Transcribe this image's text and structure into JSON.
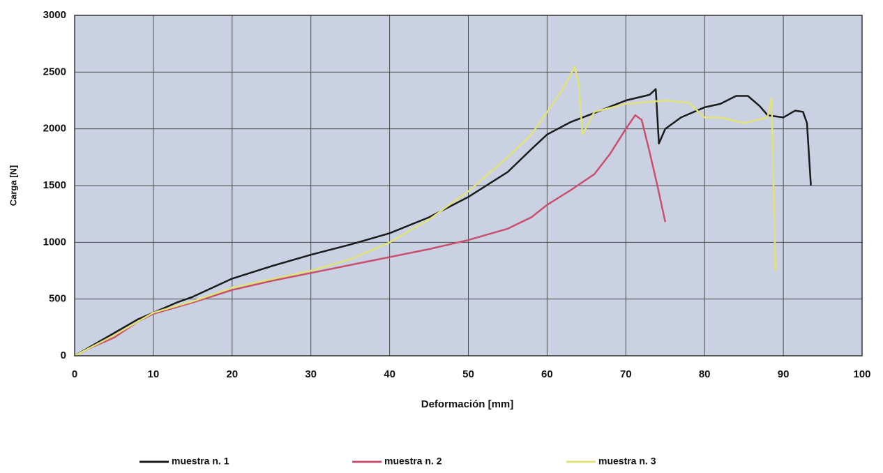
{
  "chart_data": {
    "type": "line",
    "xlabel": "Deformación [mm]",
    "ylabel": "Carga [N]",
    "xlim": [
      0,
      100
    ],
    "xticks": [
      0,
      10,
      20,
      30,
      40,
      50,
      60,
      70,
      80,
      90,
      100
    ],
    "ylim": [
      0,
      3000
    ],
    "yticks": [
      0,
      500,
      1000,
      1500,
      2000,
      2500,
      3000
    ],
    "grid": true,
    "legend": "bottom",
    "series": [
      {
        "name": "muestra n. 1",
        "color": "#1a1a1a",
        "x": [
          0,
          2,
          5,
          8,
          10,
          13,
          15,
          20,
          25,
          30,
          35,
          40,
          45,
          50,
          55,
          58,
          60,
          63,
          66,
          70,
          73,
          73.8,
          74.2,
          75,
          77,
          80,
          82,
          84,
          85.5,
          87,
          88,
          90,
          91.5,
          92.5,
          93,
          93.5
        ],
        "values": [
          0,
          80,
          200,
          320,
          380,
          470,
          520,
          680,
          790,
          890,
          980,
          1080,
          1220,
          1400,
          1620,
          1820,
          1950,
          2060,
          2140,
          2250,
          2300,
          2350,
          1870,
          2000,
          2100,
          2190,
          2220,
          2290,
          2290,
          2200,
          2120,
          2100,
          2160,
          2150,
          2050,
          1500
        ]
      },
      {
        "name": "muestra n. 2",
        "color": "#c8506c",
        "x": [
          0,
          2,
          5,
          8,
          10,
          15,
          20,
          25,
          30,
          35,
          40,
          45,
          50,
          55,
          58,
          60,
          63,
          66,
          68,
          70,
          71.2,
          72,
          73,
          74,
          75
        ],
        "values": [
          0,
          70,
          160,
          300,
          370,
          470,
          580,
          660,
          730,
          800,
          870,
          940,
          1020,
          1120,
          1220,
          1330,
          1460,
          1600,
          1780,
          2000,
          2120,
          2080,
          1800,
          1500,
          1180
        ]
      },
      {
        "name": "muestra n. 3",
        "color": "#e2e27a",
        "x": [
          0,
          5,
          10,
          15,
          20,
          30,
          35,
          40,
          45,
          50,
          55,
          58,
          60,
          62,
          63.5,
          64,
          64.5,
          66,
          70,
          75,
          78,
          80,
          82,
          85,
          88,
          88.5,
          89
        ],
        "values": [
          0,
          180,
          380,
          480,
          600,
          750,
          850,
          1000,
          1200,
          1450,
          1750,
          1950,
          2150,
          2350,
          2550,
          2400,
          1950,
          2150,
          2220,
          2250,
          2230,
          2100,
          2100,
          2050,
          2100,
          2270,
          750
        ]
      }
    ]
  }
}
